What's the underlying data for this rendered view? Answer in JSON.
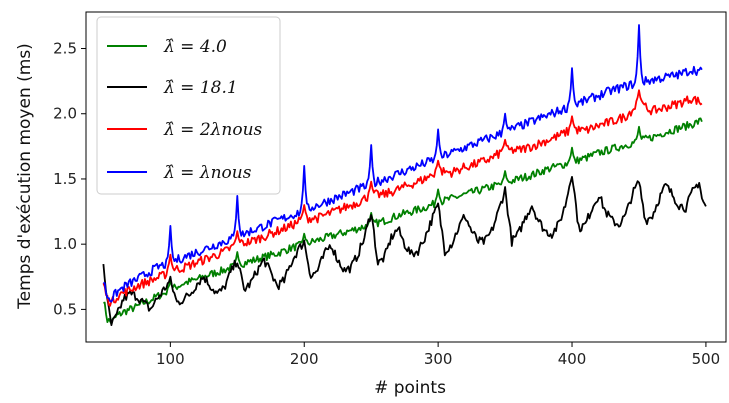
{
  "chart_data": {
    "type": "line",
    "xlabel": "# points",
    "ylabel": "Temps d'exécution moyen (ms)",
    "xlim": [
      37,
      515
    ],
    "ylim": [
      0.25,
      2.78
    ],
    "x_ticks": [
      100,
      200,
      300,
      400,
      500
    ],
    "y_ticks": [
      0.5,
      1.0,
      1.5,
      2.0,
      2.5
    ],
    "x_tick_labels": [
      "100",
      "200",
      "300",
      "400",
      "500"
    ],
    "y_tick_labels": [
      "0.5",
      "1.0",
      "1.5",
      "2.0",
      "2.5"
    ],
    "grid": false,
    "legend_position": "top-left",
    "spike_positions": [
      100,
      150,
      200,
      250,
      300,
      350,
      400,
      450
    ],
    "series": [
      {
        "name": "λ̂ = 4.0",
        "color": "#008000",
        "points": [
          [
            50,
            0.58
          ],
          [
            53,
            0.42
          ],
          [
            56,
            0.4
          ],
          [
            60,
            0.45
          ],
          [
            65,
            0.48
          ],
          [
            70,
            0.5
          ],
          [
            75,
            0.52
          ],
          [
            80,
            0.55
          ],
          [
            85,
            0.57
          ],
          [
            90,
            0.6
          ],
          [
            95,
            0.62
          ],
          [
            100,
            0.65
          ],
          [
            110,
            0.7
          ],
          [
            120,
            0.73
          ],
          [
            130,
            0.77
          ],
          [
            140,
            0.8
          ],
          [
            150,
            0.84
          ],
          [
            160,
            0.87
          ],
          [
            170,
            0.9
          ],
          [
            180,
            0.93
          ],
          [
            190,
            0.97
          ],
          [
            200,
            1.0
          ],
          [
            210,
            1.03
          ],
          [
            220,
            1.06
          ],
          [
            230,
            1.09
          ],
          [
            240,
            1.12
          ],
          [
            250,
            1.15
          ],
          [
            260,
            1.18
          ],
          [
            270,
            1.22
          ],
          [
            280,
            1.25
          ],
          [
            290,
            1.28
          ],
          [
            300,
            1.32
          ],
          [
            310,
            1.35
          ],
          [
            320,
            1.38
          ],
          [
            330,
            1.41
          ],
          [
            340,
            1.44
          ],
          [
            350,
            1.47
          ],
          [
            360,
            1.5
          ],
          [
            370,
            1.53
          ],
          [
            380,
            1.57
          ],
          [
            390,
            1.6
          ],
          [
            400,
            1.63
          ],
          [
            410,
            1.66
          ],
          [
            420,
            1.7
          ],
          [
            430,
            1.73
          ],
          [
            440,
            1.76
          ],
          [
            450,
            1.79
          ],
          [
            460,
            1.82
          ],
          [
            470,
            1.86
          ],
          [
            480,
            1.89
          ],
          [
            490,
            1.92
          ],
          [
            497,
            1.95
          ]
        ]
      },
      {
        "name": "λ̂ = 18.1",
        "color": "#000000",
        "points": [
          [
            50,
            0.85
          ],
          [
            53,
            0.55
          ],
          [
            56,
            0.38
          ],
          [
            60,
            0.45
          ],
          [
            65,
            0.58
          ],
          [
            70,
            0.62
          ],
          [
            75,
            0.6
          ],
          [
            80,
            0.55
          ],
          [
            85,
            0.5
          ],
          [
            90,
            0.58
          ],
          [
            95,
            0.65
          ],
          [
            100,
            0.72
          ],
          [
            105,
            0.55
          ],
          [
            110,
            0.58
          ],
          [
            115,
            0.62
          ],
          [
            120,
            0.7
          ],
          [
            125,
            0.75
          ],
          [
            130,
            0.68
          ],
          [
            135,
            0.62
          ],
          [
            140,
            0.66
          ],
          [
            145,
            0.78
          ],
          [
            150,
            0.88
          ],
          [
            155,
            0.65
          ],
          [
            160,
            0.7
          ],
          [
            165,
            0.8
          ],
          [
            170,
            0.88
          ],
          [
            175,
            0.78
          ],
          [
            180,
            0.68
          ],
          [
            185,
            0.72
          ],
          [
            190,
            0.85
          ],
          [
            195,
            0.95
          ],
          [
            200,
            1.02
          ],
          [
            205,
            0.75
          ],
          [
            210,
            0.8
          ],
          [
            215,
            0.92
          ],
          [
            220,
            1.0
          ],
          [
            225,
            0.88
          ],
          [
            230,
            0.8
          ],
          [
            235,
            0.82
          ],
          [
            240,
            0.92
          ],
          [
            245,
            1.05
          ],
          [
            250,
            1.25
          ],
          [
            255,
            0.85
          ],
          [
            260,
            0.9
          ],
          [
            265,
            1.05
          ],
          [
            270,
            1.12
          ],
          [
            275,
            1.0
          ],
          [
            280,
            0.92
          ],
          [
            285,
            0.95
          ],
          [
            290,
            1.05
          ],
          [
            295,
            1.18
          ],
          [
            300,
            1.3
          ],
          [
            305,
            0.95
          ],
          [
            310,
            1.0
          ],
          [
            315,
            1.12
          ],
          [
            320,
            1.22
          ],
          [
            325,
            1.1
          ],
          [
            330,
            1.02
          ],
          [
            335,
            1.02
          ],
          [
            340,
            1.1
          ],
          [
            345,
            1.25
          ],
          [
            350,
            1.42
          ],
          [
            355,
            1.02
          ],
          [
            360,
            1.08
          ],
          [
            365,
            1.2
          ],
          [
            370,
            1.3
          ],
          [
            375,
            1.18
          ],
          [
            380,
            1.1
          ],
          [
            385,
            1.08
          ],
          [
            390,
            1.15
          ],
          [
            395,
            1.3
          ],
          [
            400,
            1.55
          ],
          [
            405,
            1.12
          ],
          [
            410,
            1.15
          ],
          [
            415,
            1.28
          ],
          [
            420,
            1.38
          ],
          [
            425,
            1.25
          ],
          [
            430,
            1.18
          ],
          [
            435,
            1.15
          ],
          [
            440,
            1.22
          ],
          [
            445,
            1.38
          ],
          [
            450,
            1.48
          ],
          [
            455,
            1.18
          ],
          [
            460,
            1.22
          ],
          [
            465,
            1.35
          ],
          [
            470,
            1.45
          ],
          [
            475,
            1.38
          ],
          [
            480,
            1.3
          ],
          [
            485,
            1.28
          ],
          [
            490,
            1.4
          ],
          [
            495,
            1.48
          ],
          [
            497,
            1.35
          ],
          [
            500,
            1.28
          ]
        ]
      },
      {
        "name": "λ̂ = 2λnous",
        "color": "#ff0000",
        "points": [
          [
            50,
            0.7
          ],
          [
            53,
            0.58
          ],
          [
            56,
            0.55
          ],
          [
            60,
            0.6
          ],
          [
            65,
            0.63
          ],
          [
            70,
            0.65
          ],
          [
            75,
            0.68
          ],
          [
            80,
            0.7
          ],
          [
            85,
            0.72
          ],
          [
            90,
            0.74
          ],
          [
            95,
            0.76
          ],
          [
            100,
            0.8
          ],
          [
            110,
            0.82
          ],
          [
            120,
            0.86
          ],
          [
            130,
            0.9
          ],
          [
            140,
            0.94
          ],
          [
            150,
            1.0
          ],
          [
            160,
            1.02
          ],
          [
            170,
            1.06
          ],
          [
            180,
            1.1
          ],
          [
            190,
            1.14
          ],
          [
            200,
            1.2
          ],
          [
            210,
            1.2
          ],
          [
            220,
            1.24
          ],
          [
            230,
            1.28
          ],
          [
            240,
            1.32
          ],
          [
            250,
            1.38
          ],
          [
            260,
            1.38
          ],
          [
            270,
            1.42
          ],
          [
            280,
            1.46
          ],
          [
            290,
            1.5
          ],
          [
            300,
            1.56
          ],
          [
            310,
            1.55
          ],
          [
            320,
            1.59
          ],
          [
            330,
            1.62
          ],
          [
            340,
            1.66
          ],
          [
            350,
            1.72
          ],
          [
            360,
            1.72
          ],
          [
            370,
            1.75
          ],
          [
            380,
            1.79
          ],
          [
            390,
            1.83
          ],
          [
            400,
            1.88
          ],
          [
            410,
            1.87
          ],
          [
            420,
            1.91
          ],
          [
            430,
            1.94
          ],
          [
            440,
            1.98
          ],
          [
            450,
            2.08
          ],
          [
            460,
            2.02
          ],
          [
            470,
            2.05
          ],
          [
            480,
            2.08
          ],
          [
            490,
            2.12
          ],
          [
            497,
            2.08
          ]
        ]
      },
      {
        "name": "λ̂ = λnous",
        "color": "#0000ff",
        "points": [
          [
            50,
            0.72
          ],
          [
            53,
            0.6
          ],
          [
            56,
            0.58
          ],
          [
            60,
            0.63
          ],
          [
            65,
            0.67
          ],
          [
            70,
            0.7
          ],
          [
            75,
            0.73
          ],
          [
            80,
            0.76
          ],
          [
            85,
            0.79
          ],
          [
            90,
            0.82
          ],
          [
            95,
            0.84
          ],
          [
            100,
            0.86
          ],
          [
            110,
            0.9
          ],
          [
            120,
            0.94
          ],
          [
            130,
            0.98
          ],
          [
            140,
            1.02
          ],
          [
            150,
            1.06
          ],
          [
            160,
            1.1
          ],
          [
            170,
            1.14
          ],
          [
            180,
            1.18
          ],
          [
            190,
            1.22
          ],
          [
            200,
            1.26
          ],
          [
            210,
            1.3
          ],
          [
            220,
            1.34
          ],
          [
            230,
            1.38
          ],
          [
            240,
            1.42
          ],
          [
            250,
            1.46
          ],
          [
            260,
            1.5
          ],
          [
            270,
            1.54
          ],
          [
            280,
            1.58
          ],
          [
            290,
            1.62
          ],
          [
            300,
            1.66
          ],
          [
            310,
            1.7
          ],
          [
            320,
            1.74
          ],
          [
            330,
            1.78
          ],
          [
            340,
            1.82
          ],
          [
            350,
            1.86
          ],
          [
            360,
            1.9
          ],
          [
            370,
            1.94
          ],
          [
            380,
            1.98
          ],
          [
            390,
            2.02
          ],
          [
            400,
            2.06
          ],
          [
            410,
            2.1
          ],
          [
            420,
            2.14
          ],
          [
            430,
            2.18
          ],
          [
            440,
            2.21
          ],
          [
            450,
            2.24
          ],
          [
            460,
            2.26
          ],
          [
            470,
            2.28
          ],
          [
            480,
            2.3
          ],
          [
            490,
            2.34
          ],
          [
            497,
            2.32
          ]
        ]
      }
    ],
    "spikes": [
      {
        "series": 3,
        "peaks": [
          1.14,
          1.37,
          1.6,
          1.76,
          1.88,
          2.0,
          2.35,
          2.68
        ]
      },
      {
        "series": 2,
        "peaks": [
          0.92,
          1.1,
          1.3,
          1.48,
          1.64,
          1.8,
          1.98,
          2.18
        ]
      },
      {
        "series": 0,
        "peaks": [
          0.72,
          0.94,
          1.08,
          1.24,
          1.42,
          1.56,
          1.74,
          1.9
        ]
      }
    ]
  }
}
